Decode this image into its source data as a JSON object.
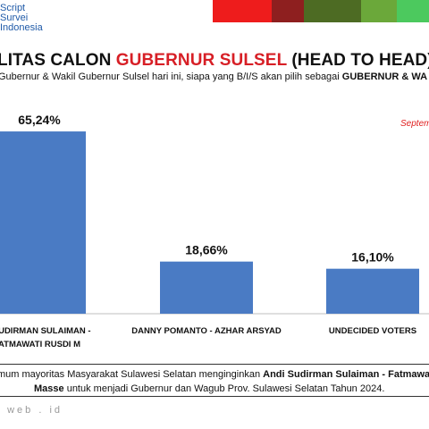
{
  "logo": {
    "line1": "Script",
    "line2": "Survei",
    "line3": "Indonesia"
  },
  "header_colors": [
    "#ee1c1c",
    "#8e1f1f",
    "#4d6b23",
    "#6ba83a",
    "#4cc95e"
  ],
  "title": {
    "part1": "LITAS CALON ",
    "part2": "GUBERNUR SULSEL",
    "part3": "  (HEAD TO HEAD)"
  },
  "subtitle": {
    "normal": "Gubernur & Wakil Gubernur Sulsel hari ini, siapa yang B/I/S akan pilih sebagai ",
    "bold": "GUBERNUR & WA"
  },
  "date_label": "Septem",
  "footer": {
    "line1_normal": "mum mayoritas Masyarakat Sulawesi Selatan menginginkan ",
    "line1_bold": "Andi Sudirman Sulaiman - Fatmawa",
    "line2_bold": "Masse",
    "line2_normal": " untuk menjadi Gubernur dan Wagub Prov. Sulawesi Selatan Tahun 2024."
  },
  "website": ". web . id",
  "chart_data": {
    "type": "bar",
    "categories": [
      [
        "I SUDIRMAN SULAIMAN -",
        "ATMAWATI RUSDI M"
      ],
      [
        "DANNY POMANTO - AZHAR ARSYAD"
      ],
      [
        "UNDECIDED VOTERS"
      ]
    ],
    "values": [
      65.24,
      18.66,
      16.1
    ],
    "value_labels": [
      "65,24%",
      "18,66%",
      "16,10%"
    ],
    "bar_color": "#4a7bc4",
    "ylim": [
      0,
      70
    ]
  }
}
